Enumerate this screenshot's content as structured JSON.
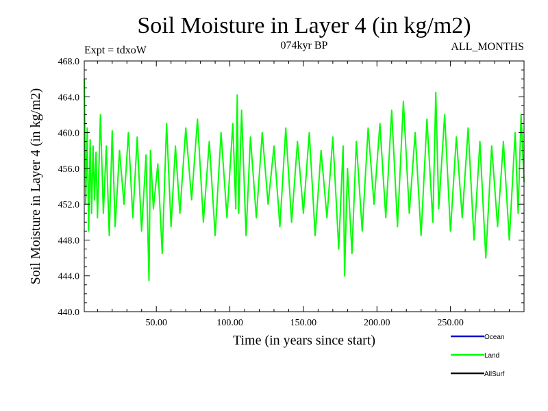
{
  "chart_data": {
    "type": "line",
    "title": "Soil Moisture in Layer 4 (in kg/m2)",
    "subtitle": "074kyr BP",
    "experiment_label": "Expt = tdxoW",
    "period_label": "ALL_MONTHS",
    "xlabel": "Time (in years since start)",
    "ylabel": "Soil Moisture in Layer 4 (in kg/m2)",
    "xlim": [
      1,
      300
    ],
    "ylim": [
      440.0,
      468.0
    ],
    "x_ticks": [
      50,
      100,
      150,
      200,
      250
    ],
    "x_tick_labels": [
      "50.00",
      "100.00",
      "150.00",
      "200.00",
      "250.00"
    ],
    "y_ticks": [
      440,
      444,
      448,
      452,
      456,
      460,
      464,
      468
    ],
    "y_tick_labels": [
      "440.0",
      "444.0",
      "448.0",
      "452.0",
      "456.0",
      "460.0",
      "464.0",
      "468.0"
    ],
    "grid": false,
    "legend_position": "bottom-right",
    "legend": [
      {
        "name": "Ocean",
        "color": "#0000cc"
      },
      {
        "name": "Land",
        "color": "#00ff00"
      },
      {
        "name": "AllSurf",
        "color": "#000000"
      }
    ],
    "series": [
      {
        "name": "Land",
        "color": "#00ff00",
        "x": [
          1,
          2,
          3,
          4,
          5,
          6,
          7,
          8,
          9,
          10,
          12,
          14,
          16,
          18,
          20,
          22,
          25,
          28,
          31,
          34,
          37,
          40,
          43,
          45,
          46,
          48,
          51,
          54,
          57,
          60,
          63,
          66,
          70,
          74,
          78,
          82,
          86,
          90,
          94,
          98,
          102,
          104,
          105,
          106,
          108,
          111,
          114,
          118,
          122,
          126,
          130,
          134,
          138,
          142,
          146,
          150,
          154,
          158,
          162,
          166,
          170,
          174,
          177,
          178,
          180,
          183,
          186,
          190,
          194,
          198,
          202,
          206,
          210,
          214,
          218,
          222,
          226,
          230,
          234,
          238,
          240,
          242,
          246,
          250,
          254,
          258,
          262,
          266,
          270,
          274,
          278,
          282,
          286,
          290,
          294,
          296,
          298,
          300
        ],
        "values": [
          466.0,
          452.0,
          460.5,
          449.0,
          459.2,
          451.0,
          458.5,
          452.5,
          457.8,
          450.5,
          462.0,
          451.0,
          458.5,
          448.5,
          460.2,
          449.5,
          458.0,
          452.0,
          460.0,
          450.5,
          459.5,
          449.0,
          457.5,
          443.5,
          458.0,
          451.5,
          456.5,
          446.5,
          461.0,
          449.5,
          458.5,
          451.0,
          460.5,
          452.5,
          461.5,
          450.0,
          459.0,
          448.5,
          460.0,
          450.5,
          461.0,
          451.5,
          464.2,
          451.0,
          462.5,
          448.5,
          459.5,
          450.5,
          460.0,
          452.0,
          458.5,
          449.5,
          460.5,
          450.0,
          459.0,
          451.0,
          460.0,
          448.5,
          458.0,
          450.5,
          459.5,
          447.0,
          458.5,
          444.0,
          456.0,
          446.5,
          459.0,
          449.0,
          460.5,
          452.0,
          461.0,
          450.5,
          462.5,
          449.5,
          463.5,
          451.0,
          460.0,
          448.5,
          461.5,
          450.0,
          464.5,
          451.5,
          462.0,
          449.0,
          459.5,
          450.5,
          460.5,
          448.0,
          459.0,
          446.0,
          458.5,
          449.5,
          459.0,
          448.0,
          460.0,
          451.0,
          462.0,
          454.5
        ]
      }
    ]
  }
}
